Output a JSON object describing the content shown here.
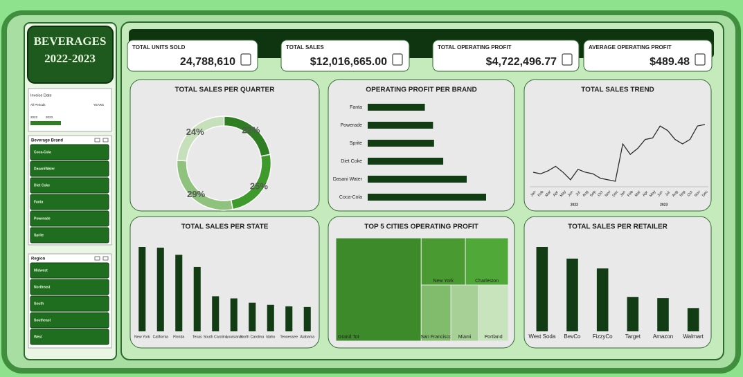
{
  "sidebar": {
    "title": [
      "BEVERAGES",
      "2022-2023"
    ],
    "timeline": {
      "label": "Invoice Date",
      "period": "All Periods",
      "unit": "YEARS",
      "years": [
        "2022",
        "2023"
      ]
    },
    "slicers": [
      {
        "label": "Beverage Brand",
        "items": [
          "Coca-Cola",
          "DasaniWater",
          "Diet Coke",
          "Fanta",
          "Powerade",
          "Sprite"
        ]
      },
      {
        "label": "Region",
        "items": [
          "Midwest",
          "Northeast",
          "South",
          "Southeast",
          "West"
        ]
      }
    ]
  },
  "kpis": [
    {
      "label": "TOTAL UNITS SOLD",
      "value": "24,788,610"
    },
    {
      "label": "TOTAL SALES",
      "value": "$12,016,665.00"
    },
    {
      "label": "TOTAL OPERATING PROFIT",
      "value": "$4,722,496.77"
    },
    {
      "label": "AVERAGE OPERATING PROFIT",
      "value": "$489.48"
    }
  ],
  "chart_data": [
    {
      "type": "pie",
      "title": "TOTAL SALES PER QUARTER",
      "values": [
        22,
        25,
        29,
        24
      ],
      "value_labels": [
        "22%",
        "25%",
        "29%",
        "24%"
      ],
      "colors": [
        "#2f7f22",
        "#3f9a2c",
        "#8fc27c",
        "#c6e0bb"
      ]
    },
    {
      "type": "hbar",
      "title": "OPERATING PROFIT PER BRAND",
      "categories": [
        "Fanta",
        "Powerade",
        "Sprite",
        "Diet Coke",
        "Dasani Water",
        "Coca-Cola"
      ],
      "values": [
        560000,
        640000,
        650000,
        740000,
        970000,
        1160000
      ],
      "color": "#123d14"
    },
    {
      "type": "line",
      "title": "TOTAL SALES TREND",
      "x": [
        "Jan",
        "Feb",
        "Mar",
        "Apr",
        "May",
        "Jun",
        "Jul",
        "Aug",
        "Sep",
        "Oct",
        "Nov",
        "Dec",
        "Jan",
        "Feb",
        "Mar",
        "Apr",
        "May",
        "Jun",
        "Jul",
        "Aug",
        "Sep",
        "Oct",
        "Nov",
        "Dec"
      ],
      "x_groups": [
        "2022",
        "2023"
      ],
      "values": [
        380000,
        370000,
        390000,
        420000,
        380000,
        330000,
        400000,
        380000,
        370000,
        340000,
        330000,
        320000,
        570000,
        500000,
        540000,
        600000,
        610000,
        690000,
        660000,
        600000,
        570000,
        600000,
        690000,
        700000
      ],
      "color": "#2b2b2b"
    },
    {
      "type": "bar",
      "title": "TOTAL SALES PER STATE",
      "categories": [
        "New York",
        "California",
        "Florida",
        "Texas",
        "South Carolina",
        "Louisiana",
        "North Carolina",
        "Idaho",
        "Tennessee",
        "Alabama"
      ],
      "values": [
        1180000,
        1170000,
        1070000,
        900000,
        490000,
        460000,
        400000,
        370000,
        350000,
        340000
      ],
      "color": "#123d14"
    },
    {
      "type": "treemap",
      "title": "TOP 5 CITIES OPERATING PROFIT",
      "categories": [
        "Grand Tot",
        "New York",
        "Charleston",
        "San Francisco",
        "Miami",
        "Portland"
      ],
      "values": [
        550000,
        130000,
        126000,
        104000,
        97000,
        104000
      ],
      "colors": [
        "#3c8a2a",
        "#4a9a32",
        "#50a838",
        "#80bc6c",
        "#a6d096",
        "#c8e4bd"
      ]
    },
    {
      "type": "bar",
      "title": "TOTAL SALES PER RETAILER",
      "categories": [
        "West Soda",
        "BevCo",
        "FizzyCo",
        "Target",
        "Amazon",
        "Walmart"
      ],
      "values": [
        3260000,
        2810000,
        2430000,
        1330000,
        1280000,
        900000
      ],
      "color": "#123d14"
    }
  ]
}
